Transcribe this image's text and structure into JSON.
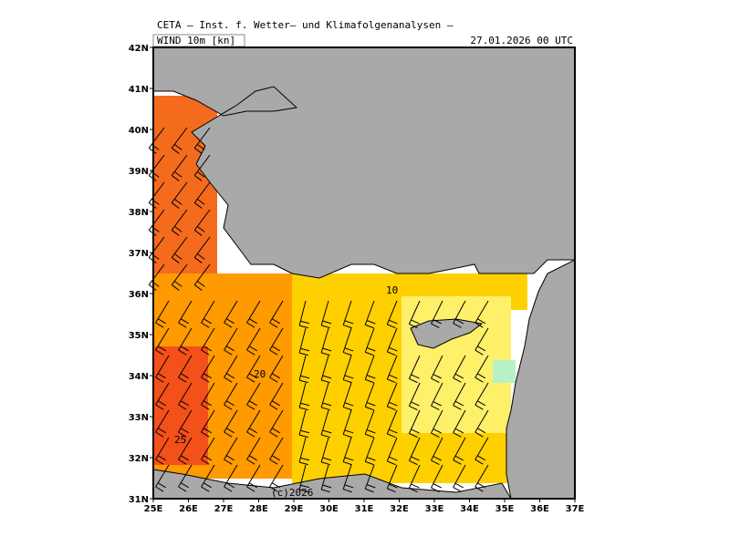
{
  "header": {
    "title": "CETA — Inst. f. Wetter— und Klimafolgenanalysen —",
    "field": "WIND 10m [kn]",
    "datetime": "27.01.2026 00 UTC"
  },
  "axes": {
    "lat_ticks": [
      "42N",
      "41N",
      "40N",
      "39N",
      "38N",
      "37N",
      "36N",
      "35N",
      "34N",
      "33N",
      "32N",
      "31N"
    ],
    "lon_ticks": [
      "25E",
      "26E",
      "27E",
      "28E",
      "29E",
      "30E",
      "31E",
      "32E",
      "33E",
      "34E",
      "35E",
      "36E",
      "37E"
    ]
  },
  "contour_labels": [
    "10",
    "20",
    "25"
  ],
  "credit": "(c)2026"
}
